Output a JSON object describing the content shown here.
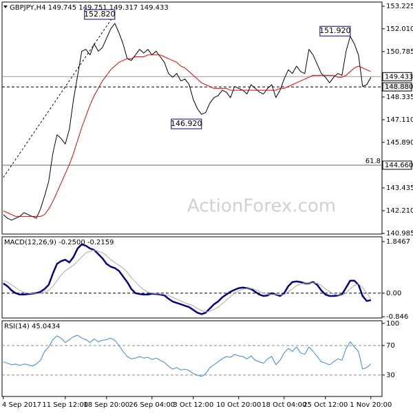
{
  "chart_data": [
    {
      "type": "line",
      "title": "GBPJPY,H4 149.745 149.751 149.317 149.433",
      "watermark": "ActionForex.com",
      "xlim": [
        -0.3,
        91.7
      ],
      "ylim": [
        140.95,
        153.45
      ],
      "yticks": [
        153.225,
        {
          "value": 152.01,
          "label": "152.010"
        },
        150.785,
        148.335,
        {
          "value": 147.11,
          "label": "147.110"
        },
        {
          "value": 145.89,
          "label": "145.890"
        },
        143.435,
        {
          "value": 142.21,
          "label": "142.210"
        },
        140.985
      ],
      "hlines": [
        {
          "value": 149.433,
          "label": "149.433",
          "color": "#999999",
          "dashed": false
        },
        {
          "value": 148.88,
          "label": "148.880",
          "color": "#000000",
          "dashed": true
        },
        {
          "value": 144.66,
          "label": "144.660",
          "color": "#666666",
          "dashed": false,
          "note": "61.8"
        }
      ],
      "trendline": {
        "x": [
          0,
          27
        ],
        "y": [
          144.0,
          152.8
        ]
      },
      "annotations": [
        {
          "text": "152.820",
          "x": 27,
          "y": 152.82
        },
        {
          "text": "146.920",
          "x": 48,
          "y": 146.92
        },
        {
          "text": "151.920",
          "x": 84,
          "y": 151.92
        }
      ],
      "series": [
        {
          "name": "GBPJPY",
          "color": "#000000",
          "width": 1,
          "values": [
            142.0,
            141.8,
            141.7,
            141.8,
            141.9,
            142.1,
            142.0,
            141.9,
            141.8,
            142.3,
            143.0,
            143.8,
            145.3,
            146.3,
            146.1,
            145.8,
            146.6,
            148.2,
            149.5,
            150.8,
            150.9,
            150.6,
            151.2,
            150.8,
            151.0,
            151.5,
            152.0,
            152.3,
            151.8,
            151.2,
            150.4,
            150.3,
            150.6,
            150.9,
            150.7,
            150.9,
            150.6,
            150.8,
            150.5,
            150.2,
            149.6,
            149.4,
            149.6,
            149.2,
            149.3,
            149.0,
            148.2,
            147.7,
            147.4,
            147.5,
            148.0,
            148.3,
            148.4,
            148.7,
            148.6,
            148.3,
            148.9,
            148.8,
            148.7,
            148.5,
            149.0,
            148.8,
            148.6,
            148.5,
            148.8,
            149.0,
            148.3,
            148.7,
            149.3,
            149.8,
            149.6,
            150.0,
            149.7,
            149.6,
            150.9,
            150.6,
            150.1,
            149.6,
            149.4,
            149.1,
            149.4,
            149.6,
            149.5,
            150.8,
            151.6,
            151.2,
            150.6,
            148.9,
            149.0,
            149.4
          ]
        },
        {
          "name": "MA",
          "color": "#e00000",
          "width": 1,
          "values": [
            142.2,
            142.1,
            142.0,
            141.9,
            141.9,
            141.9,
            141.9,
            141.9,
            141.9,
            141.9,
            142.0,
            142.3,
            142.7,
            143.2,
            143.7,
            144.2,
            144.7,
            145.3,
            146.0,
            146.7,
            147.3,
            147.9,
            148.4,
            148.8,
            149.2,
            149.5,
            149.8,
            150.0,
            150.2,
            150.3,
            150.4,
            150.4,
            150.5,
            150.5,
            150.5,
            150.6,
            150.6,
            150.6,
            150.6,
            150.5,
            150.4,
            150.3,
            150.2,
            150.0,
            149.9,
            149.7,
            149.5,
            149.3,
            149.1,
            149.0,
            148.9,
            148.8,
            148.8,
            148.8,
            148.8,
            148.7,
            148.7,
            148.7,
            148.7,
            148.7,
            148.7,
            148.7,
            148.7,
            148.7,
            148.7,
            148.7,
            148.7,
            148.8,
            148.8,
            148.9,
            149.0,
            149.1,
            149.2,
            149.3,
            149.4,
            149.5,
            149.5,
            149.5,
            149.5,
            149.5,
            149.5,
            149.4,
            149.4,
            149.5,
            149.7,
            149.9,
            150.0,
            149.9,
            149.8,
            149.7
          ]
        }
      ]
    },
    {
      "type": "line",
      "title": "MACD(12,26,9) -0.2500 -0.2159",
      "xlim": [
        -0.3,
        91.7
      ],
      "ylim": [
        -0.89,
        2.02
      ],
      "yticks": [
        1.8467,
        {
          "value": 0,
          "label": "0.00"
        },
        -0.846
      ],
      "hlines": [
        {
          "value": 0,
          "color": "#000000",
          "dashed": true
        }
      ],
      "series": [
        {
          "name": "MACD",
          "color": "#000080",
          "width": 2.5,
          "values": [
            0.35,
            0.25,
            0.1,
            0.0,
            -0.05,
            -0.05,
            -0.03,
            -0.02,
            0.0,
            0.05,
            0.15,
            0.3,
            0.7,
            1.05,
            1.15,
            1.2,
            1.1,
            1.3,
            1.6,
            1.75,
            1.7,
            1.6,
            1.55,
            1.4,
            1.25,
            1.05,
            0.95,
            0.9,
            0.8,
            0.6,
            0.4,
            0.15,
            0.0,
            -0.03,
            -0.05,
            -0.05,
            -0.02,
            -0.03,
            -0.05,
            -0.08,
            -0.2,
            -0.3,
            -0.35,
            -0.4,
            -0.45,
            -0.5,
            -0.6,
            -0.7,
            -0.75,
            -0.7,
            -0.55,
            -0.4,
            -0.3,
            -0.15,
            -0.05,
            0.05,
            0.12,
            0.18,
            0.2,
            0.18,
            0.15,
            0.05,
            -0.05,
            -0.1,
            -0.08,
            0.0,
            -0.05,
            -0.1,
            0.0,
            0.25,
            0.4,
            0.42,
            0.4,
            0.35,
            0.35,
            0.4,
            0.3,
            0.1,
            -0.05,
            -0.1,
            -0.1,
            -0.08,
            -0.05,
            0.2,
            0.45,
            0.45,
            0.3,
            -0.1,
            -0.28,
            -0.25
          ]
        },
        {
          "name": "Signal",
          "color": "#aaaaaa",
          "width": 1,
          "values": [
            0.45,
            0.4,
            0.3,
            0.2,
            0.1,
            0.03,
            0.0,
            -0.02,
            -0.02,
            0.0,
            0.04,
            0.1,
            0.25,
            0.45,
            0.65,
            0.8,
            0.9,
            1.0,
            1.15,
            1.3,
            1.45,
            1.5,
            1.55,
            1.5,
            1.45,
            1.35,
            1.2,
            1.1,
            1.0,
            0.9,
            0.75,
            0.55,
            0.4,
            0.25,
            0.12,
            0.05,
            0.0,
            -0.02,
            -0.03,
            -0.05,
            -0.08,
            -0.15,
            -0.22,
            -0.28,
            -0.35,
            -0.4,
            -0.45,
            -0.55,
            -0.62,
            -0.67,
            -0.65,
            -0.58,
            -0.5,
            -0.38,
            -0.25,
            -0.12,
            0.0,
            0.08,
            0.14,
            0.17,
            0.17,
            0.13,
            0.07,
            0.0,
            -0.05,
            -0.05,
            -0.05,
            -0.06,
            -0.05,
            0.05,
            0.15,
            0.27,
            0.33,
            0.36,
            0.36,
            0.37,
            0.35,
            0.28,
            0.15,
            0.05,
            -0.03,
            -0.07,
            -0.07,
            0.0,
            0.15,
            0.28,
            0.33,
            0.2,
            0.0,
            -0.2159
          ]
        }
      ]
    },
    {
      "type": "line",
      "title": "RSI(14) 45.0434",
      "xlim": [
        -0.3,
        91.7
      ],
      "ylim": [
        1,
        103.5
      ],
      "yticks": [
        100,
        70,
        30
      ],
      "hlines": [
        {
          "value": 70,
          "color": "#888888",
          "dashed": true
        },
        {
          "value": 30,
          "color": "#888888",
          "dashed": true
        }
      ],
      "xticks": [
        {
          "value": 0,
          "label": "4 Sep 2017"
        },
        {
          "value": 15,
          "label": "11 Sep 12:00"
        },
        {
          "value": 25,
          "label": "18 Sep 20:00"
        },
        {
          "value": 36,
          "label": "26 Sep 04:00"
        },
        {
          "value": 46,
          "label": "3 Oct 12:00"
        },
        {
          "value": 57,
          "label": "10 Oct 20:00"
        },
        {
          "value": 68,
          "label": "18 Oct 04:00"
        },
        {
          "value": 78,
          "label": "25 Oct 12:00"
        },
        {
          "value": 89,
          "label": "1 Nov 20:00"
        }
      ],
      "series": [
        {
          "name": "RSI",
          "color": "#3a86d4",
          "width": 1,
          "values": [
            48,
            46,
            44,
            45,
            43,
            45,
            44,
            42,
            45,
            50,
            62,
            68,
            78,
            83,
            80,
            74,
            78,
            82,
            84,
            80,
            78,
            74,
            79,
            75,
            77,
            78,
            80,
            77,
            70,
            62,
            55,
            52,
            53,
            55,
            53,
            54,
            51,
            53,
            50,
            47,
            42,
            38,
            40,
            37,
            38,
            36,
            32,
            30,
            28,
            32,
            40,
            44,
            48,
            52,
            55,
            54,
            58,
            56,
            55,
            52,
            56,
            50,
            48,
            46,
            52,
            55,
            44,
            50,
            60,
            66,
            62,
            68,
            60,
            58,
            68,
            62,
            55,
            48,
            46,
            44,
            48,
            52,
            50,
            66,
            75,
            68,
            62,
            38,
            40,
            45.0434
          ]
        }
      ]
    }
  ]
}
